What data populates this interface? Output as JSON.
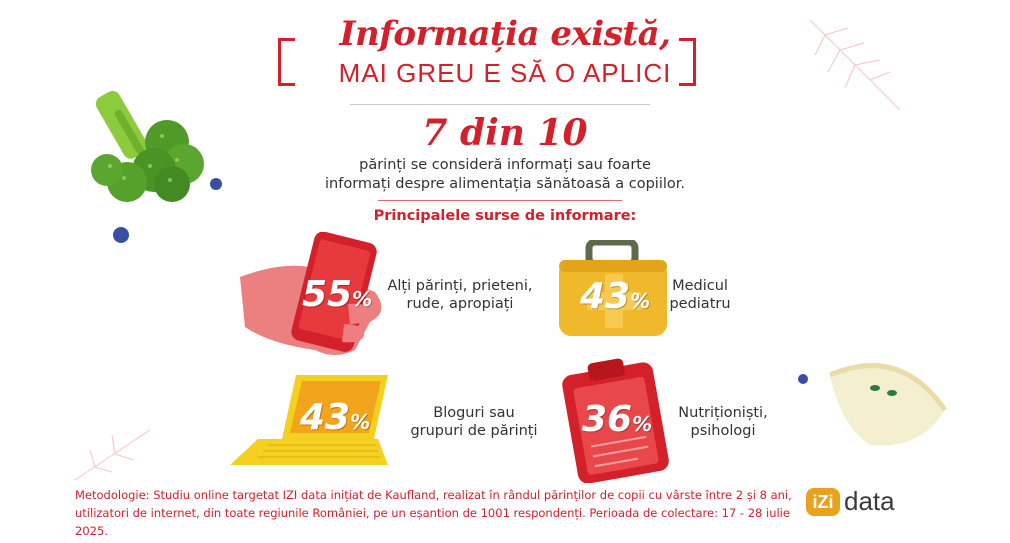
{
  "header": {
    "title_line1": "Informația există,",
    "title_line2": "MAI GREU E SĂ O APLICI"
  },
  "headline": {
    "stat": "7 din 10",
    "text_line1": "părinți se consideră informați sau foarte",
    "text_line2": "informați despre alimentația sănătoasă a copiilor."
  },
  "sources": {
    "heading": "Principalele surse de informare:",
    "items": [
      {
        "value": "55",
        "unit": "%",
        "label_line1": "Alți părinți, prieteni,",
        "label_line2": "rude, apropiați",
        "icon": "phone-in-hand-icon"
      },
      {
        "value": "43",
        "unit": "%",
        "label_line1": "Medicul",
        "label_line2": "pediatru",
        "icon": "medical-kit-icon"
      },
      {
        "value": "43",
        "unit": "%",
        "label_line1": "Bloguri sau",
        "label_line2": "grupuri de părinți",
        "icon": "laptop-icon"
      },
      {
        "value": "36",
        "unit": "%",
        "label_line1": "Nutriționiști,",
        "label_line2": "psihologi",
        "icon": "clipboard-icon"
      }
    ]
  },
  "methodology": {
    "line1": "Metodologie: Studiu online targetat IZI data inițiat de Kaufland, realizat în rândul părinților de copii cu vârste între 2 și 8 ani,",
    "line2": "utilizatori de internet, din toate regiunile României, pe un eșantion de 1001 respondenți. Perioada de colectare: 17 - 28 iulie 2025."
  },
  "logo": {
    "mark": "iZi",
    "word": "data"
  },
  "colors": {
    "accent": "#d4202b",
    "orange": "#f2a51c",
    "yellow": "#f4d020",
    "green": "#5da02c"
  }
}
